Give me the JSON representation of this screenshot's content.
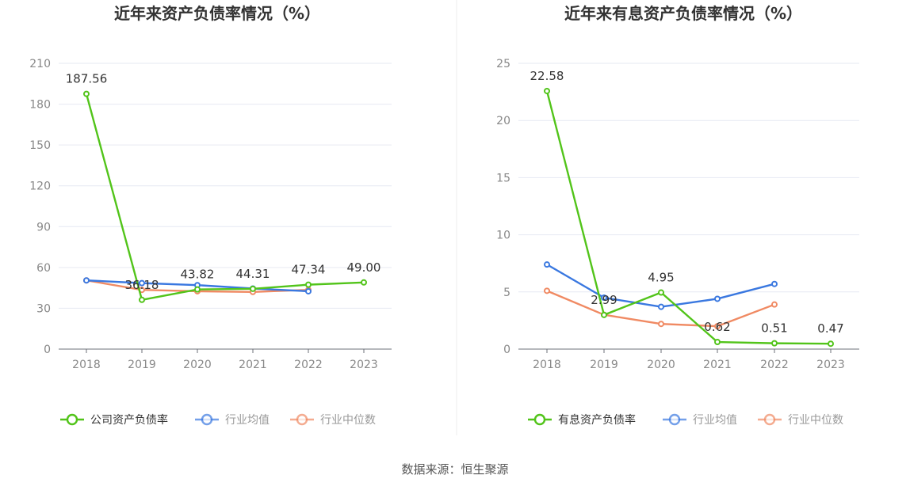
{
  "source_label": "数据来源：恒生聚源",
  "colors": {
    "company": "#52c41a",
    "avg": "#3a78e0",
    "median": "#f08a63",
    "grid": "#e6e9f2",
    "axis": "#6e7079"
  },
  "chart_data": [
    {
      "type": "line",
      "title": "近年来资产负债率情况（%）",
      "categories": [
        "2018",
        "2019",
        "2020",
        "2021",
        "2022",
        "2023"
      ],
      "ylim": [
        0,
        210
      ],
      "yticks": [
        0,
        30,
        60,
        90,
        120,
        150,
        180,
        210
      ],
      "grid": true,
      "legend_position": "bottom",
      "series": [
        {
          "name": "公司资产负债率",
          "key": "company",
          "values": [
            187.56,
            36.18,
            43.82,
            44.31,
            47.34,
            49.0
          ],
          "labels": [
            "187.56",
            "36.18",
            "43.82",
            "44.31",
            "47.34",
            "49.00"
          ]
        },
        {
          "name": "行业均值",
          "key": "avg",
          "values": [
            50.5,
            48.5,
            47.0,
            44.5,
            42.5,
            null
          ]
        },
        {
          "name": "行业中位数",
          "key": "median",
          "values": [
            50.5,
            43.5,
            42.5,
            42.0,
            43.5,
            null
          ]
        }
      ]
    },
    {
      "type": "line",
      "title": "近年来有息资产负债率情况（%）",
      "categories": [
        "2018",
        "2019",
        "2020",
        "2021",
        "2022",
        "2023"
      ],
      "ylim": [
        0,
        25
      ],
      "yticks": [
        0,
        5,
        10,
        15,
        20,
        25
      ],
      "grid": true,
      "legend_position": "bottom",
      "series": [
        {
          "name": "有息资产负债率",
          "key": "company",
          "values": [
            22.58,
            2.99,
            4.95,
            0.62,
            0.51,
            0.47
          ],
          "labels": [
            "22.58",
            "2.99",
            "4.95",
            "0.62",
            "0.51",
            "0.47"
          ]
        },
        {
          "name": "行业均值",
          "key": "avg",
          "values": [
            7.4,
            4.5,
            3.7,
            4.4,
            5.7,
            null
          ]
        },
        {
          "name": "行业中位数",
          "key": "median",
          "values": [
            5.1,
            3.0,
            2.2,
            2.0,
            3.9,
            null
          ]
        }
      ]
    }
  ]
}
